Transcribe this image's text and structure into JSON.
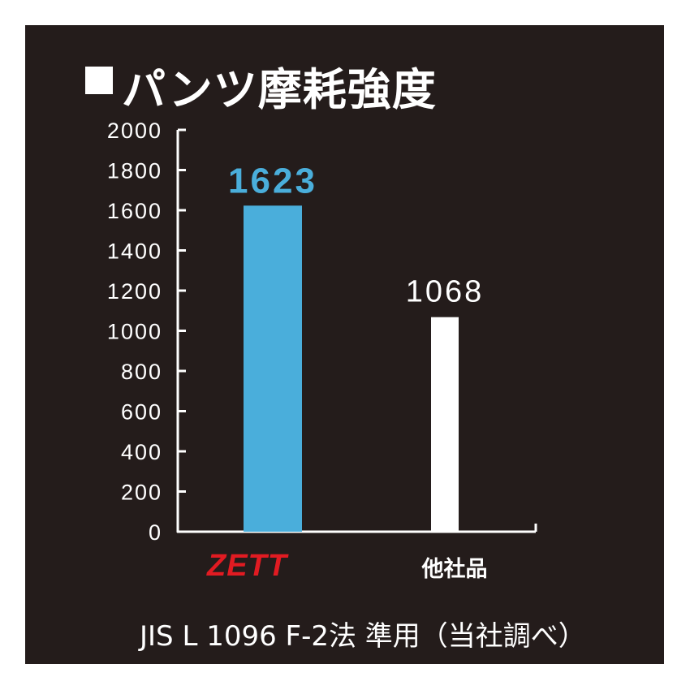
{
  "header": {
    "title": "パンツ摩耗強度"
  },
  "brand": {
    "logo_text": "ZETT"
  },
  "footer": {
    "note": "JIS L 1096 F-2法 準用（当社調べ）"
  },
  "chart_data": {
    "type": "bar",
    "title": "パンツ摩耗強度",
    "categories": [
      "ZETT",
      "他社品"
    ],
    "values": [
      1623,
      1068
    ],
    "value_labels": [
      "1623",
      "1068"
    ],
    "ylim": [
      0,
      2000
    ],
    "yticks": [
      0,
      200,
      400,
      600,
      800,
      1000,
      1200,
      1400,
      1600,
      1800,
      2000
    ],
    "grid": false,
    "colors": {
      "background": "#241c1b",
      "bars": [
        "#4aaedb",
        "#ffffff"
      ],
      "value_labels": [
        "#4aaedb",
        "#ffffff"
      ],
      "axis": "#ffffff",
      "logo": "#e11b22"
    }
  }
}
